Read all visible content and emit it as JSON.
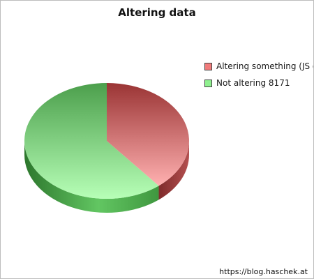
{
  "chart_data": {
    "type": "pie",
    "title": "Altering data",
    "slices": [
      {
        "label": "Altering something (JS o",
        "value": 5250,
        "color": "#f07b7b"
      },
      {
        "label": "Not altering 8171",
        "value": 8171,
        "color": "#8ff08f"
      }
    ],
    "three_d": true,
    "legend_position": "right",
    "footer": "https://blog.haschek.at"
  }
}
